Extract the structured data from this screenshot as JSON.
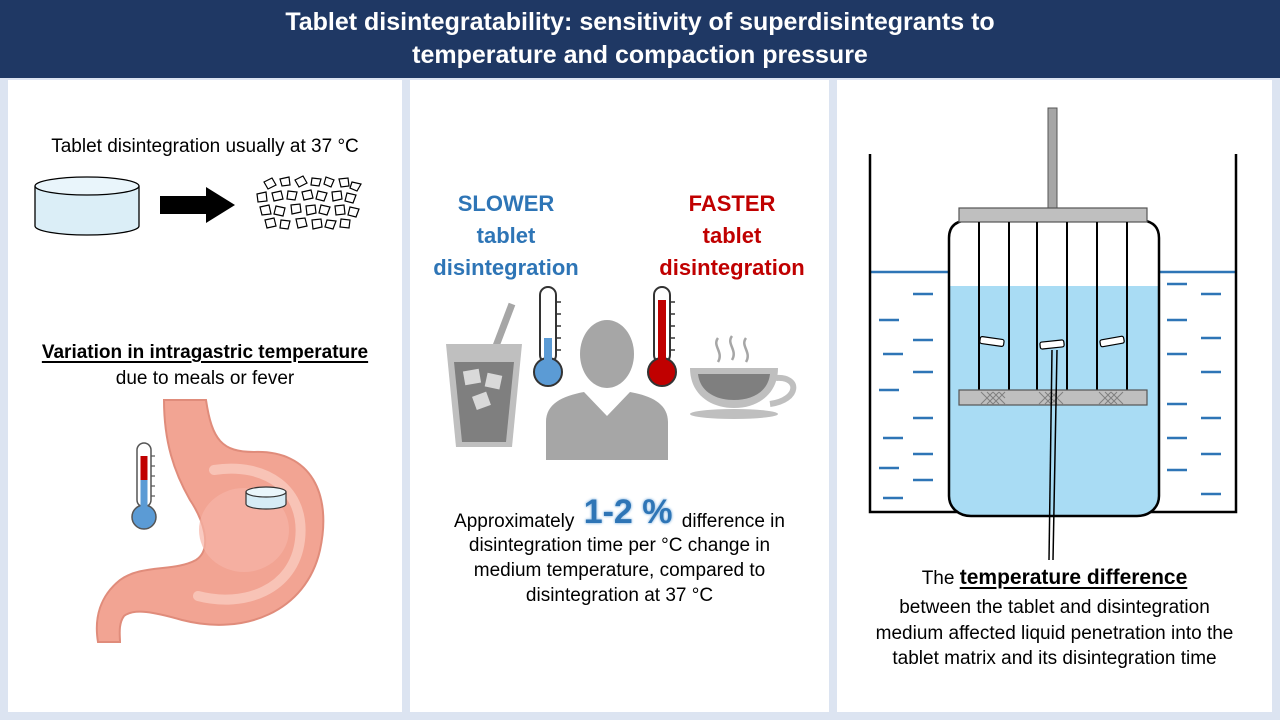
{
  "header": {
    "title_line1": "Tablet disintegratability: sensitivity of superdisintegrants to",
    "title_line2": "temperature and compaction pressure"
  },
  "panel1": {
    "caption_top": "Tablet disintegration usually  at 37 °C",
    "variation_heading": "Variation in intragastric temperature",
    "variation_sub": "due to meals or fever"
  },
  "panel2": {
    "slower": [
      "SLOWER",
      "tablet",
      "disintegration"
    ],
    "faster": [
      "FASTER",
      "tablet",
      "disintegration"
    ],
    "approx_prefix": "Approximately",
    "approx_value": "1-2 %",
    "approx_suffix": "difference in",
    "approx_line2": "disintegration time per °C change in",
    "approx_line3": "medium  temperature, compared to",
    "approx_line4": "disintegration at 37 °C"
  },
  "panel3": {
    "the": "The",
    "emphasis": "temperature difference",
    "line2": "between the tablet and disintegration",
    "line3": "medium  affected liquid penetration into the",
    "line4": "tablet matrix and its disintegration time"
  },
  "colors": {
    "header_bg": "#1f3864",
    "cold_blue": "#2e75b6",
    "hot_red": "#c00000",
    "water": "#a9dcf4",
    "stomach": "#f2a493"
  }
}
